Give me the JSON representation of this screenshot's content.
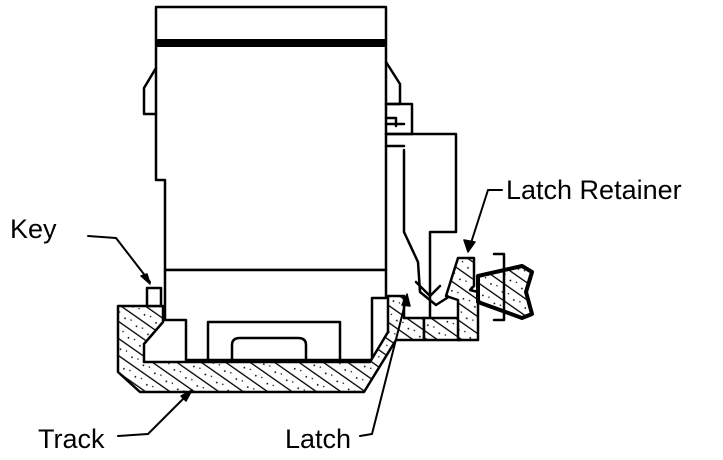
{
  "labels": {
    "key": "Key",
    "latch_retainer": "Latch Retainer",
    "track": "Track",
    "latch": "Latch"
  },
  "colors": {
    "ink": "#000000",
    "paper": "#ffffff"
  }
}
